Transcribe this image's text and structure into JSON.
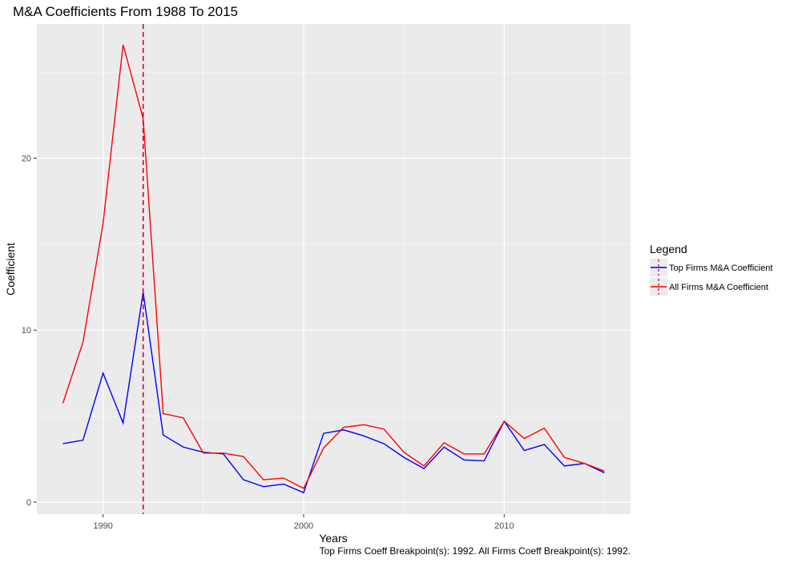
{
  "chart_data": {
    "type": "line",
    "title": "M&A Coefficients From 1988 To 2015",
    "xlabel": "Years",
    "ylabel": "Coefficient",
    "xlim": [
      1986.7,
      2016.3
    ],
    "ylim": [
      -0.7,
      27.8
    ],
    "x_ticks": [
      1990,
      2000,
      2010
    ],
    "y_ticks": [
      0,
      10,
      20
    ],
    "x_minor": [
      1995,
      2005,
      2015
    ],
    "y_minor": [
      5,
      15,
      25
    ],
    "grid": true,
    "x": [
      1988,
      1989,
      1990,
      1991,
      1992,
      1993,
      1994,
      1995,
      1996,
      1997,
      1998,
      1999,
      2000,
      2001,
      2002,
      2003,
      2004,
      2005,
      2006,
      2007,
      2008,
      2009,
      2010,
      2011,
      2012,
      2013,
      2014,
      2015
    ],
    "series": [
      {
        "name": "Top Firms M&A Coefficient",
        "color": "#0000ff",
        "values": [
          3.4,
          3.6,
          7.5,
          4.6,
          12.2,
          3.9,
          3.2,
          2.9,
          2.8,
          1.3,
          0.9,
          1.05,
          0.55,
          4.0,
          4.2,
          3.85,
          3.4,
          2.6,
          1.95,
          3.2,
          2.45,
          2.4,
          4.7,
          3.0,
          3.35,
          2.1,
          2.25,
          1.7
        ]
      },
      {
        "name": "All Firms M&A Coefficient",
        "color": "#ff0000",
        "values": [
          5.75,
          9.3,
          16.2,
          26.6,
          22.3,
          5.15,
          4.9,
          2.85,
          2.85,
          2.65,
          1.3,
          1.4,
          0.8,
          3.15,
          4.35,
          4.5,
          4.25,
          2.9,
          2.1,
          3.45,
          2.8,
          2.8,
          4.7,
          3.7,
          4.3,
          2.6,
          2.25,
          1.8
        ]
      }
    ],
    "breakpoint": {
      "x": 1992,
      "color": "#cc0033",
      "style": "dashed"
    },
    "legend": {
      "title": "Legend",
      "position": "right"
    },
    "caption": "Top Firms Coeff Breakpoint(s): 1992. All Firms Coeff Breakpoint(s): 1992."
  }
}
